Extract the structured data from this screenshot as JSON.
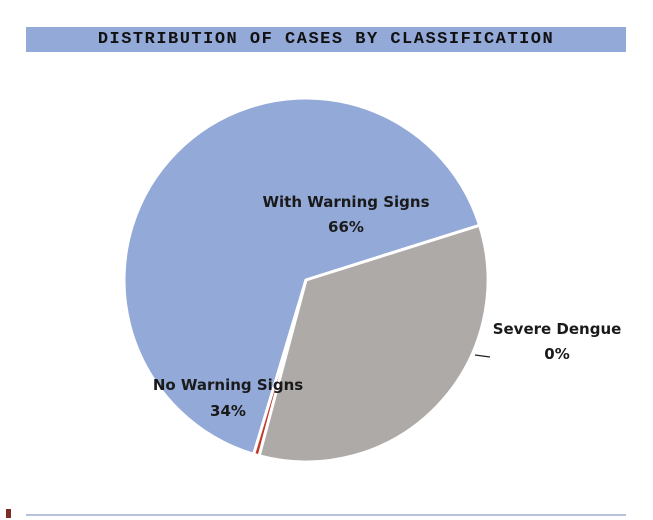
{
  "chart_data": {
    "type": "pie",
    "title": "DISTRIBUTION OF CASES BY CLASSIFICATION",
    "slices": [
      {
        "label": "With Warning Signs",
        "value": 65.5,
        "display": "66%",
        "color": "#93a9d8"
      },
      {
        "label": "Severe Dengue",
        "value": 0.5,
        "display": "0%",
        "color": "#c0392b"
      },
      {
        "label": "No Warning Signs",
        "value": 34.0,
        "display": "34%",
        "color": "#adaaa7"
      }
    ],
    "legend": "none",
    "data_labels": true
  }
}
